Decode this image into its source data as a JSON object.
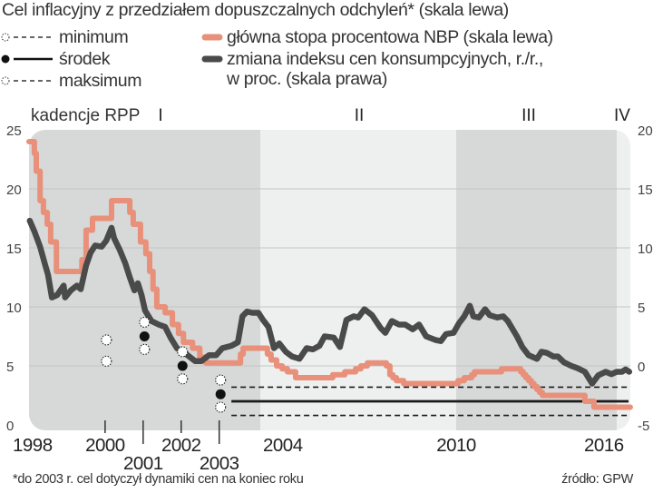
{
  "header": {
    "title": "Cel inflacyjny z przedziałem dopuszczalnych odchyleń* (skala lewa)"
  },
  "legend": {
    "min_label": "minimum",
    "mid_label": "środek",
    "max_label": "maksimum",
    "rate_label": "główna stopa procentowa NBP (skala lewa)",
    "cpi_label_line1": "zmiana indeksu cen konsumpcyjnych, r./r.,",
    "cpi_label_line2": "w proc. (skala prawa)"
  },
  "colors": {
    "rate": "#e8907a",
    "cpi": "#4a4a4a",
    "target": "#1a1a1a",
    "band_dark": "#d7d8d8",
    "band_light": "#eeefef"
  },
  "footer": {
    "footnote": "*do 2003 r. cel dotyczył dynamiki cen na koniec roku",
    "source": "źródło: GPW"
  },
  "chart_data": {
    "type": "line",
    "title": "Cel inflacyjny z przedziałem dopuszczalnych odchyleń* (skala lewa)",
    "xlabel": "",
    "ylabel_left": "",
    "ylabel_right": "",
    "grid": true,
    "left_axis": {
      "ylim": [
        0,
        25
      ],
      "ticks": [
        0,
        5,
        10,
        15,
        20,
        25
      ]
    },
    "right_axis": {
      "ylim": [
        -5,
        20
      ],
      "ticks": [
        -5,
        0,
        5,
        10,
        15,
        20
      ]
    },
    "x_range": [
      1998.0,
      2016.6
    ],
    "x_tick_labels": [
      {
        "label": "1998",
        "year": 1998.0,
        "tick": false,
        "row": 1
      },
      {
        "label": "2000",
        "year": 2000.0,
        "tick": true,
        "row": 1
      },
      {
        "label": "2001",
        "year": 2001.0,
        "tick": true,
        "row": 2
      },
      {
        "label": "2002",
        "year": 2002.0,
        "tick": true,
        "row": 1
      },
      {
        "label": "2003",
        "year": 2003.0,
        "tick": true,
        "row": 2
      },
      {
        "label": "2004",
        "year": 2004.08,
        "tick": false,
        "row": 1
      },
      {
        "label": "2010",
        "year": 2010.08,
        "tick": false,
        "row": 1
      },
      {
        "label": "2016",
        "year": 2015.6,
        "tick": false,
        "row": 1
      }
    ],
    "periods_label": "kadencje RPP",
    "periods": [
      {
        "label": "I",
        "start": 1998.0,
        "end": 2004.08,
        "shade": "dark"
      },
      {
        "label": "II",
        "start": 2004.08,
        "end": 2010.08,
        "shade": "light"
      },
      {
        "label": "III",
        "start": 2010.08,
        "end": 2016.08,
        "shade": "dark"
      },
      {
        "label": "IV",
        "start": 2016.08,
        "end": 2016.6,
        "shade": "light"
      }
    ],
    "series": [
      {
        "name": "główna stopa procentowa NBP (skala lewa)",
        "axis": "left",
        "style": "step",
        "points": [
          [
            1998.0,
            24
          ],
          [
            1998.14,
            23
          ],
          [
            1998.19,
            21.5
          ],
          [
            1998.29,
            19
          ],
          [
            1998.38,
            18
          ],
          [
            1998.48,
            17
          ],
          [
            1998.57,
            15.5
          ],
          [
            1998.72,
            13
          ],
          [
            1999.39,
            14
          ],
          [
            1999.5,
            16.5
          ],
          [
            1999.67,
            17.5
          ],
          [
            2000.17,
            19
          ],
          [
            2000.65,
            18
          ],
          [
            2000.74,
            17
          ],
          [
            2000.93,
            15.5
          ],
          [
            2001.07,
            14.5
          ],
          [
            2001.17,
            13
          ],
          [
            2001.26,
            11.5
          ],
          [
            2001.36,
            10
          ],
          [
            2001.58,
            9.5
          ],
          [
            2001.77,
            8.5
          ],
          [
            2001.93,
            7.75
          ],
          [
            2002.06,
            7
          ],
          [
            2002.3,
            6.5
          ],
          [
            2002.49,
            5.75
          ],
          [
            2002.65,
            5.25
          ],
          [
            2003.56,
            6.0
          ],
          [
            2003.63,
            6.5
          ],
          [
            2004.3,
            6.0
          ],
          [
            2004.41,
            5.5
          ],
          [
            2004.58,
            5.0
          ],
          [
            2004.75,
            4.75
          ],
          [
            2004.91,
            4.5
          ],
          [
            2005.16,
            4.0
          ],
          [
            2006.3,
            4.25
          ],
          [
            2006.67,
            4.5
          ],
          [
            2007.0,
            4.75
          ],
          [
            2007.16,
            5.0
          ],
          [
            2007.36,
            5.25
          ],
          [
            2007.94,
            5.0
          ],
          [
            2008.05,
            4.25
          ],
          [
            2008.14,
            4.0
          ],
          [
            2008.25,
            3.75
          ],
          [
            2008.47,
            3.5
          ],
          [
            2010.15,
            3.75
          ],
          [
            2010.38,
            4.0
          ],
          [
            2010.66,
            4.25
          ],
          [
            2010.76,
            4.5
          ],
          [
            2011.77,
            4.75
          ],
          [
            2012.49,
            4.5
          ],
          [
            2012.59,
            4.25
          ],
          [
            2012.68,
            4.0
          ],
          [
            2012.79,
            3.75
          ],
          [
            2012.89,
            3.5
          ],
          [
            2012.99,
            3.25
          ],
          [
            2013.1,
            3.0
          ],
          [
            2013.2,
            2.75
          ],
          [
            2013.3,
            2.5
          ],
          [
            2014.89,
            2.0
          ],
          [
            2015.23,
            1.5
          ],
          [
            2016.6,
            1.5
          ]
        ]
      },
      {
        "name": "zmiana indeksu cen konsumpcyjnych, r./r., w proc. (skala prawa)",
        "axis": "right",
        "style": "line",
        "points": [
          [
            1998.02,
            12.3
          ],
          [
            1998.14,
            11.4
          ],
          [
            1998.29,
            10.1
          ],
          [
            1998.43,
            8.5
          ],
          [
            1998.5,
            7.7
          ],
          [
            1998.6,
            5.8
          ],
          [
            1998.74,
            6.0
          ],
          [
            1998.91,
            6.8
          ],
          [
            1998.95,
            5.8
          ],
          [
            1999.1,
            6.4
          ],
          [
            1999.26,
            6.8
          ],
          [
            1999.36,
            6.5
          ],
          [
            1999.5,
            8.5
          ],
          [
            1999.62,
            9.6
          ],
          [
            1999.74,
            10.2
          ],
          [
            1999.91,
            10.1
          ],
          [
            2000.03,
            10.6
          ],
          [
            2000.17,
            11.7
          ],
          [
            2000.24,
            10.8
          ],
          [
            2000.39,
            9.8
          ],
          [
            2000.53,
            8.7
          ],
          [
            2000.65,
            7.5
          ],
          [
            2000.77,
            6.4
          ],
          [
            2000.86,
            7.0
          ],
          [
            2000.96,
            6.0
          ],
          [
            2001.05,
            4.7
          ],
          [
            2001.22,
            3.8
          ],
          [
            2001.41,
            3.5
          ],
          [
            2001.58,
            3.3
          ],
          [
            2001.72,
            2.4
          ],
          [
            2001.89,
            1.5
          ],
          [
            2002.13,
            1.0
          ],
          [
            2002.37,
            0.4
          ],
          [
            2002.53,
            0.4
          ],
          [
            2002.73,
            0.9
          ],
          [
            2002.92,
            0.9
          ],
          [
            2003.08,
            1.5
          ],
          [
            2003.32,
            1.7
          ],
          [
            2003.49,
            2.0
          ],
          [
            2003.61,
            4.2
          ],
          [
            2003.73,
            4.6
          ],
          [
            2003.87,
            4.5
          ],
          [
            2004.03,
            4.5
          ],
          [
            2004.16,
            3.9
          ],
          [
            2004.33,
            3.3
          ],
          [
            2004.5,
            1.5
          ],
          [
            2004.66,
            1.9
          ],
          [
            2004.86,
            1.2
          ],
          [
            2005.05,
            0.8
          ],
          [
            2005.28,
            0.6
          ],
          [
            2005.5,
            1.5
          ],
          [
            2005.69,
            1.4
          ],
          [
            2005.89,
            1.7
          ],
          [
            2006.05,
            2.5
          ],
          [
            2006.33,
            2.4
          ],
          [
            2006.52,
            1.6
          ],
          [
            2006.72,
            3.9
          ],
          [
            2006.94,
            4.2
          ],
          [
            2007.08,
            4.1
          ],
          [
            2007.27,
            4.8
          ],
          [
            2007.5,
            4.3
          ],
          [
            2007.77,
            3.2
          ],
          [
            2007.91,
            2.8
          ],
          [
            2008.11,
            3.8
          ],
          [
            2008.33,
            3.5
          ],
          [
            2008.52,
            3.5
          ],
          [
            2008.75,
            3.1
          ],
          [
            2008.94,
            3.5
          ],
          [
            2009.16,
            2.5
          ],
          [
            2009.44,
            2.2
          ],
          [
            2009.61,
            2.1
          ],
          [
            2009.77,
            2.7
          ],
          [
            2010.0,
            2.8
          ],
          [
            2010.18,
            3.6
          ],
          [
            2010.38,
            4.2
          ],
          [
            2010.59,
            5.1
          ],
          [
            2010.72,
            4.2
          ],
          [
            2010.93,
            4.1
          ],
          [
            2011.16,
            4.8
          ],
          [
            2011.33,
            4.3
          ],
          [
            2011.61,
            4.1
          ],
          [
            2011.84,
            4.2
          ],
          [
            2012.01,
            3.8
          ],
          [
            2012.35,
            2.5
          ],
          [
            2012.55,
            1.6
          ],
          [
            2012.79,
            0.9
          ],
          [
            2013.1,
            0.6
          ],
          [
            2013.27,
            1.2
          ],
          [
            2013.47,
            1.1
          ],
          [
            2013.71,
            0.8
          ],
          [
            2013.88,
            0.8
          ],
          [
            2014.11,
            0.3
          ],
          [
            2014.38,
            0.0
          ],
          [
            2014.62,
            -0.2
          ],
          [
            2014.89,
            -0.5
          ],
          [
            2015.16,
            -1.5
          ],
          [
            2015.39,
            -0.8
          ],
          [
            2015.67,
            -0.5
          ],
          [
            2015.88,
            -0.7
          ],
          [
            2016.08,
            -0.5
          ],
          [
            2016.28,
            -0.5
          ],
          [
            2016.42,
            -0.3
          ],
          [
            2016.56,
            -0.5
          ]
        ]
      }
    ],
    "annual_targets": [
      {
        "year": 2000.0,
        "min": 5.4,
        "mid": null,
        "max": 7.2
      },
      {
        "year": 2001.0,
        "min": 6.4,
        "mid": 7.5,
        "max": 8.7
      },
      {
        "year": 2002.0,
        "min": 3.9,
        "mid": 5.0,
        "max": 6.2
      },
      {
        "year": 2003.0,
        "min": 1.5,
        "mid": 2.6,
        "max": 3.8
      }
    ],
    "continuous_target": {
      "start": 2003.32,
      "end": 2016.6,
      "min": 0.8,
      "mid": 2.0,
      "max": 3.2
    }
  }
}
